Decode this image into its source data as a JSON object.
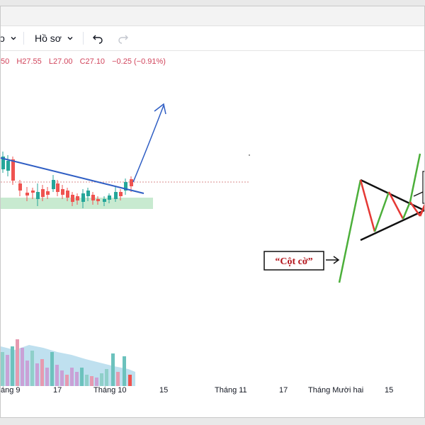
{
  "toolbar": {
    "partial_label": "o",
    "profile_label": "Hồ sơ"
  },
  "ohlc": {
    "open_fragment": "50",
    "high": "H27.55",
    "low": "L27.00",
    "close": "C27.10",
    "change": "−0.25 (−0.91%)"
  },
  "annotation": {
    "flagpole_label": "“Cột cờ”"
  },
  "x_axis": {
    "labels": [
      "áng 9",
      "17",
      "Tháng 10",
      "15",
      "Tháng 11",
      "17",
      "Tháng Mười hai",
      "15"
    ]
  },
  "colors": {
    "up": "#26a69a",
    "down": "#ef5350",
    "trendline": "#2f5ec4",
    "flagpole": "#4caf3a",
    "zone": "#c8ead0",
    "label_text": "#b3141b",
    "ohlc_text": "#d1445b"
  },
  "icons": [
    "chevron-down-icon",
    "undo-icon",
    "redo-icon",
    "arrow-right-icon"
  ]
}
